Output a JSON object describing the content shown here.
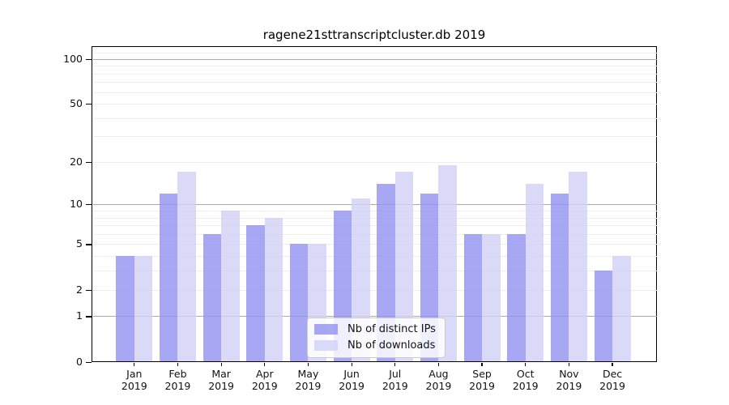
{
  "page": {
    "background": "#ffffff"
  },
  "chart_data": {
    "type": "bar",
    "title": "ragene21sttranscriptcluster.db 2019",
    "categories": [
      "Jan",
      "Feb",
      "Mar",
      "Apr",
      "May",
      "Jun",
      "Jul",
      "Aug",
      "Sep",
      "Oct",
      "Nov",
      "Dec"
    ],
    "x_year_label": "2019",
    "series": [
      {
        "name": "Nb of distinct IPs",
        "color": "#9191f0",
        "alpha": 0.8,
        "values": [
          4,
          12,
          6,
          7,
          5,
          9,
          14,
          12,
          6,
          6,
          12,
          3
        ]
      },
      {
        "name": "Nb of downloads",
        "color": "#d1d1f6",
        "alpha": 0.8,
        "values": [
          4,
          17,
          9,
          8,
          5,
          11,
          17,
          19,
          6,
          14,
          17,
          4
        ]
      }
    ],
    "y_axis": {
      "scale": "log1p",
      "ticks": [
        0,
        1,
        2,
        5,
        10,
        20,
        50,
        100
      ],
      "minor_gridlines": [
        3,
        4,
        6,
        7,
        8,
        9,
        30,
        40,
        60,
        70,
        80,
        90,
        110
      ],
      "major_gridline_values": [
        1,
        10,
        100
      ],
      "major_gridline_color": "#ababab",
      "minor_gridline_color": "#ededed",
      "ylim": [
        0,
        118
      ]
    },
    "legend": {
      "position": "lower-center"
    },
    "grid": "on"
  }
}
